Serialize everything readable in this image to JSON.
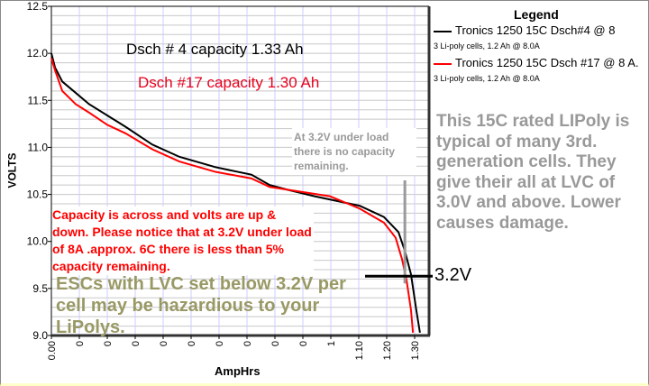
{
  "chart_data": {
    "type": "line",
    "xlabel": "AmpHrs",
    "ylabel": "VOLTS",
    "ylim": [
      9.0,
      12.5
    ],
    "y_ticks": [
      "12.5",
      "12.0",
      "11.5",
      "11.0",
      "10.5",
      "10.0",
      "9.5",
      "9.0"
    ],
    "x_tick_labels": [
      "0.00",
      "0",
      "0",
      "0",
      "0",
      "0",
      "0",
      "0",
      "0",
      "0",
      "1",
      "1.10",
      "1.20",
      "1.30"
    ],
    "x_units_note": "x values given in tick-index units (axis is non-linear)",
    "grid": true,
    "legend": {
      "title": "Legend",
      "placement": "top-right",
      "entries": [
        {
          "label": "Tronics 1250 15C Dsch#4 @ 8",
          "sub": "3 Li-poly cells, 1.2 Ah @ 8.0A",
          "color": "#000000"
        },
        {
          "label": "Tronics 1250 15C Dsch #17 @ 8 A.",
          "sub": "3 Li-poly cells, 1.2 Ah @ 8.0A",
          "color": "#ff0000"
        }
      ]
    },
    "series": [
      {
        "name": "Dsch #4",
        "color": "#000000",
        "x": [
          0,
          0.13,
          0.39,
          0.87,
          1.35,
          2.0,
          2.65,
          3.61,
          4.58,
          5.87,
          7.16,
          7.81,
          8.45,
          9.42,
          11.03,
          11.9,
          12.42,
          12.65,
          12.87,
          13.06,
          13.19
        ],
        "y": [
          12.0,
          11.85,
          11.7,
          11.58,
          11.46,
          11.34,
          11.22,
          11.03,
          10.9,
          10.79,
          10.71,
          10.6,
          10.55,
          10.48,
          10.38,
          10.26,
          10.1,
          9.9,
          9.65,
          9.27,
          9.03
        ]
      },
      {
        "name": "Dsch #17",
        "color": "#ff0000",
        "x": [
          0,
          0.13,
          0.39,
          0.87,
          1.35,
          2.0,
          2.65,
          3.61,
          4.58,
          5.87,
          7.16,
          7.81,
          9.97,
          11.03,
          11.9,
          12.32,
          12.55,
          12.71,
          12.87,
          12.94
        ],
        "y": [
          11.95,
          11.82,
          11.6,
          11.46,
          11.37,
          11.24,
          11.15,
          10.98,
          10.85,
          10.74,
          10.67,
          10.58,
          10.48,
          10.35,
          10.2,
          10.04,
          9.81,
          9.59,
          9.27,
          9.03
        ]
      }
    ],
    "annotations": {
      "dsch4": "Dsch # 4  capacity  1.33 Ah",
      "dsch17": "Dsch #17 capacity 1.30 Ah",
      "red_note": "Capacity is across and volts are up & down.  Please notice that at 3.2V under load of 8A .approx. 6C there is less than 5% capacity remaining.",
      "olive_note": "ESCs with LVC set below 3.2V per cell may be hazardious to your LiPolys.",
      "gray_box": "At 3.2V under load there is no capacity remaining.",
      "right_note": "This 15C rated LIPoly is typical of many 3rd. generation cells. They give their all at LVC of 3.0V and above. Lower causes damage.",
      "cutoff_label": "3.2V",
      "cutoff_volts": 9.63,
      "cutoff_x": 12.65
    }
  }
}
